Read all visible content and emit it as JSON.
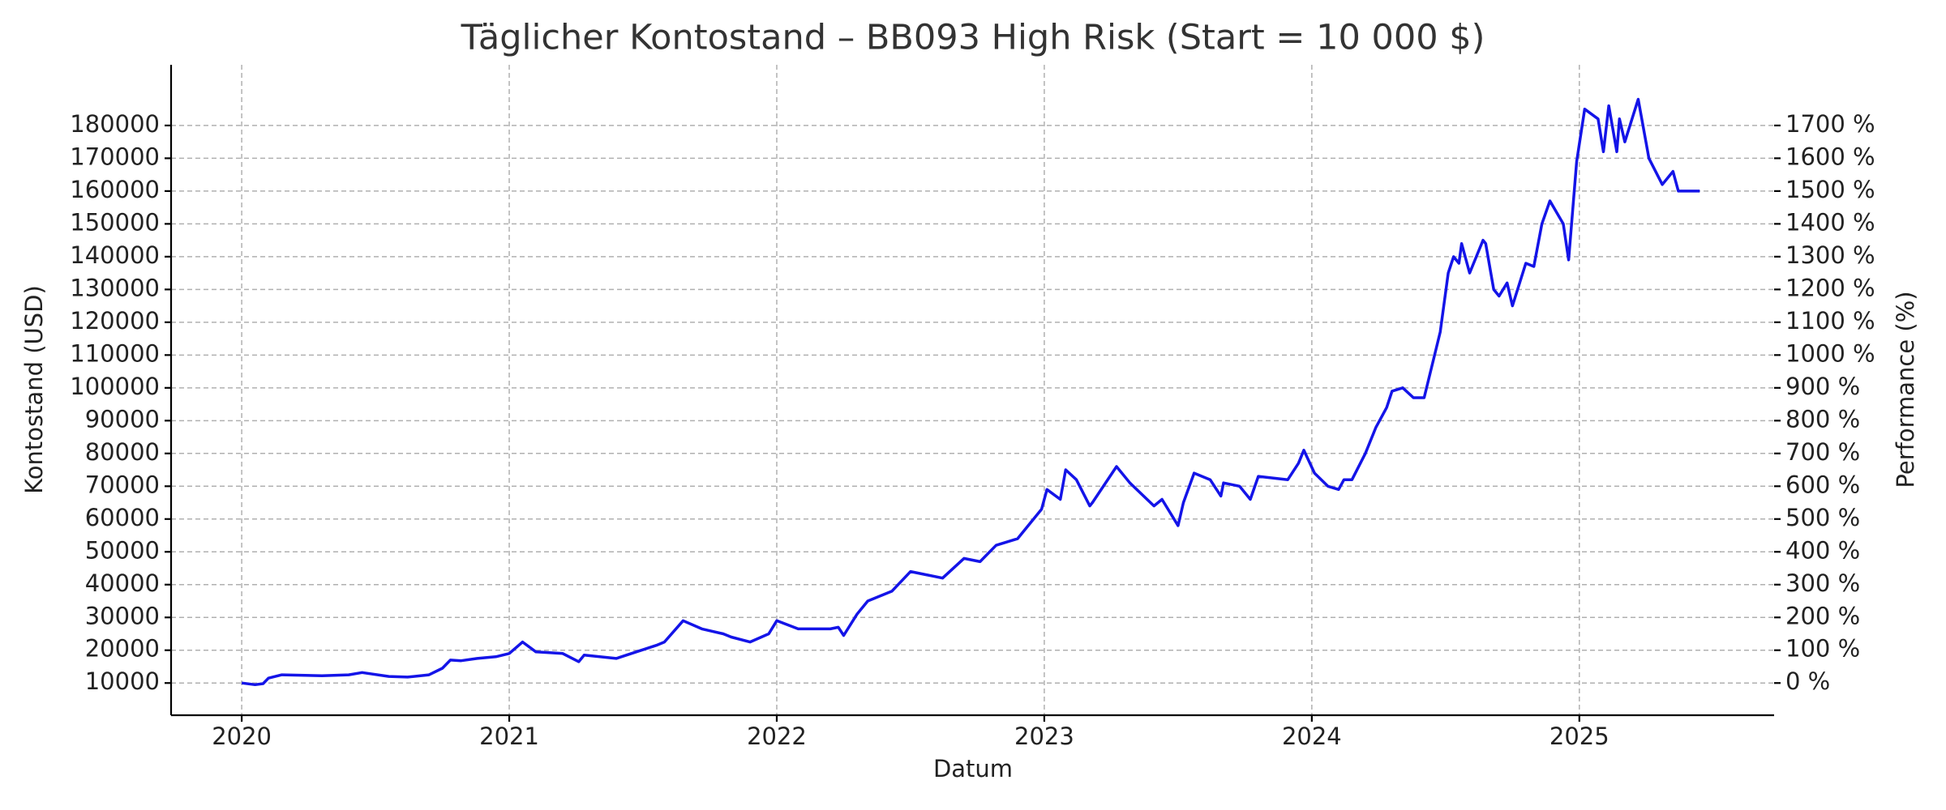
{
  "chart_data": {
    "type": "line",
    "title": "Täglicher Kontostand – BB093 High Risk (Start = 10 000 $)",
    "x_label": "Datum",
    "y_label": "Kontostand (USD)",
    "y2_label": "Performance (%)",
    "color": "#1414e8",
    "grid": true,
    "x": [
      2020.0,
      2020.05,
      2020.08,
      2020.1,
      2020.15,
      2020.3,
      2020.4,
      2020.45,
      2020.55,
      2020.62,
      2020.7,
      2020.75,
      2020.78,
      2020.82,
      2020.88,
      2020.95,
      2021.0,
      2021.05,
      2021.1,
      2021.2,
      2021.26,
      2021.28,
      2021.4,
      2021.55,
      2021.58,
      2021.65,
      2021.72,
      2021.8,
      2021.83,
      2021.9,
      2021.97,
      2022.0,
      2022.08,
      2022.2,
      2022.23,
      2022.25,
      2022.3,
      2022.34,
      2022.43,
      2022.5,
      2022.62,
      2022.7,
      2022.76,
      2022.82,
      2022.9,
      2022.99,
      2023.01,
      2023.06,
      2023.08,
      2023.12,
      2023.17,
      2023.18,
      2023.27,
      2023.32,
      2023.41,
      2023.44,
      2023.5,
      2023.52,
      2023.56,
      2023.62,
      2023.66,
      2023.67,
      2023.73,
      2023.77,
      2023.8,
      2023.91,
      2023.95,
      2023.97,
      2024.01,
      2024.06,
      2024.1,
      2024.12,
      2024.15,
      2024.2,
      2024.24,
      2024.28,
      2024.3,
      2024.34,
      2024.38,
      2024.42,
      2024.48,
      2024.51,
      2024.53,
      2024.55,
      2024.56,
      2024.59,
      2024.64,
      2024.65,
      2024.68,
      2024.7,
      2024.73,
      2024.75,
      2024.8,
      2024.83,
      2024.86,
      2024.89,
      2024.94,
      2024.96,
      2024.99,
      2025.02,
      2025.07,
      2025.09,
      2025.11,
      2025.14,
      2025.15,
      2025.17,
      2025.22,
      2025.26,
      2025.31,
      2025.35,
      2025.37,
      2025.4,
      2025.42,
      2025.45
    ],
    "values": [
      10000,
      9500,
      9800,
      11500,
      12500,
      12200,
      12500,
      13200,
      12000,
      11800,
      12500,
      14500,
      17000,
      16800,
      17500,
      18000,
      19000,
      22500,
      19500,
      19000,
      16500,
      18500,
      17500,
      21500,
      22500,
      29000,
      26500,
      25000,
      24000,
      22500,
      25000,
      29000,
      26500,
      26500,
      27000,
      24500,
      31000,
      35000,
      38000,
      44000,
      42000,
      48000,
      47000,
      52000,
      54000,
      63000,
      69000,
      66000,
      75000,
      72000,
      64000,
      65000,
      76000,
      71000,
      64000,
      66000,
      58000,
      65000,
      74000,
      72000,
      67000,
      71000,
      70000,
      66000,
      73000,
      72000,
      77000,
      81000,
      74000,
      70000,
      69000,
      72000,
      72000,
      80000,
      88000,
      94000,
      99000,
      100000,
      97000,
      97000,
      117000,
      135000,
      140000,
      138000,
      144000,
      135000,
      145000,
      144000,
      130000,
      128000,
      132000,
      125000,
      138000,
      137000,
      150000,
      157000,
      150000,
      139000,
      169000,
      185000,
      182000,
      172000,
      186000,
      172000,
      182000,
      175000,
      188000,
      170000,
      162000,
      166000,
      160000,
      160000,
      160000,
      160000
    ],
    "xlim": [
      2019.736,
      2025.728
    ],
    "xticks": [
      2020,
      2021,
      2022,
      2023,
      2024,
      2025
    ],
    "ylim": [
      178,
      198500
    ],
    "yticks": [
      10000,
      20000,
      30000,
      40000,
      50000,
      60000,
      70000,
      80000,
      90000,
      100000,
      110000,
      120000,
      130000,
      140000,
      150000,
      160000,
      170000,
      180000
    ],
    "y2lim": [
      -98.22,
      1885
    ],
    "y2ticks": [
      {
        "value": 0,
        "label": "0 %"
      },
      {
        "value": 100,
        "label": "100 %"
      },
      {
        "value": 200,
        "label": "200 %"
      },
      {
        "value": 300,
        "label": "300 %"
      },
      {
        "value": 400,
        "label": "400 %"
      },
      {
        "value": 500,
        "label": "500 %"
      },
      {
        "value": 600,
        "label": "600 %"
      },
      {
        "value": 700,
        "label": "700 %"
      },
      {
        "value": 800,
        "label": "800 %"
      },
      {
        "value": 900,
        "label": "900 %"
      },
      {
        "value": 1000,
        "label": "1000 %"
      },
      {
        "value": 1100,
        "label": "1100 %"
      },
      {
        "value": 1200,
        "label": "1200 %"
      },
      {
        "value": 1300,
        "label": "1300 %"
      },
      {
        "value": 1400,
        "label": "1400 %"
      },
      {
        "value": 1500,
        "label": "1500 %"
      },
      {
        "value": 1600,
        "label": "1600 %"
      },
      {
        "value": 1700,
        "label": "1700 %"
      }
    ]
  }
}
